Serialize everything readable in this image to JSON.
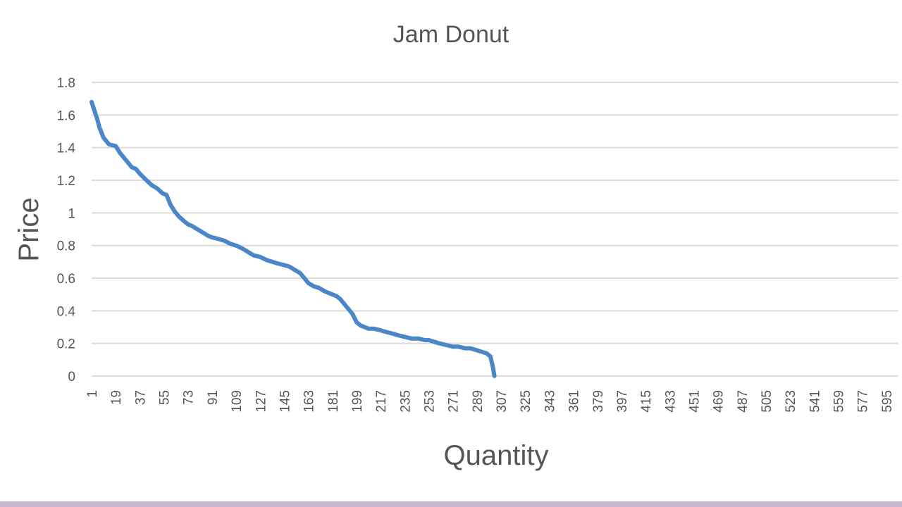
{
  "chart_data": {
    "type": "line",
    "title": "Jam Donut",
    "xlabel": "Quantity",
    "ylabel": "Price",
    "ylim": [
      0,
      1.8
    ],
    "yticks": [
      "0",
      "0.2",
      "0.4",
      "0.6",
      "0.8",
      "1",
      "1.2",
      "1.4",
      "1.6",
      "1.8"
    ],
    "xlim": [
      1,
      604
    ],
    "xticks": [
      "1",
      "19",
      "37",
      "55",
      "73",
      "91",
      "109",
      "127",
      "145",
      "163",
      "181",
      "199",
      "217",
      "235",
      "253",
      "271",
      "289",
      "307",
      "325",
      "343",
      "361",
      "379",
      "397",
      "415",
      "433",
      "451",
      "469",
      "487",
      "505",
      "523",
      "541",
      "559",
      "577",
      "595"
    ],
    "grid": true,
    "legend": "none",
    "series": [
      {
        "color": "#4a86c8",
        "x": [
          1,
          3,
          5,
          7,
          10,
          14,
          19,
          22,
          25,
          28,
          31,
          34,
          37,
          42,
          46,
          50,
          54,
          57,
          58,
          60,
          63,
          66,
          70,
          73,
          76,
          80,
          84,
          88,
          91,
          96,
          100,
          105,
          109,
          114,
          118,
          122,
          127,
          132,
          136,
          140,
          145,
          149,
          153,
          157,
          160,
          163,
          167,
          171,
          175,
          178,
          181,
          184,
          187,
          190,
          193,
          196,
          199,
          202,
          205,
          208,
          212,
          217,
          221,
          226,
          230,
          235,
          240,
          245,
          250,
          253,
          257,
          261,
          266,
          271,
          275,
          280,
          284,
          288,
          292,
          296,
          299,
          301,
          302
        ],
        "y": [
          1.68,
          1.63,
          1.58,
          1.52,
          1.46,
          1.42,
          1.41,
          1.37,
          1.34,
          1.31,
          1.28,
          1.27,
          1.24,
          1.2,
          1.17,
          1.15,
          1.12,
          1.11,
          1.09,
          1.05,
          1.01,
          0.98,
          0.95,
          0.93,
          0.92,
          0.9,
          0.88,
          0.86,
          0.85,
          0.84,
          0.83,
          0.81,
          0.8,
          0.78,
          0.76,
          0.74,
          0.73,
          0.71,
          0.7,
          0.69,
          0.68,
          0.67,
          0.65,
          0.63,
          0.6,
          0.57,
          0.55,
          0.54,
          0.52,
          0.51,
          0.5,
          0.49,
          0.47,
          0.44,
          0.41,
          0.38,
          0.33,
          0.31,
          0.3,
          0.29,
          0.29,
          0.28,
          0.27,
          0.26,
          0.25,
          0.24,
          0.23,
          0.23,
          0.22,
          0.22,
          0.21,
          0.2,
          0.19,
          0.18,
          0.18,
          0.17,
          0.17,
          0.16,
          0.15,
          0.14,
          0.12,
          0.05,
          0.0
        ]
      }
    ]
  }
}
